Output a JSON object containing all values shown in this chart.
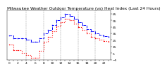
{
  "title": "Milwaukee Weather Outdoor Temperature (vs) Heat Index (Last 24 Hours)",
  "background_color": "#ffffff",
  "hours": [
    0,
    1,
    2,
    3,
    4,
    5,
    6,
    7,
    8,
    9,
    10,
    11,
    12,
    13,
    14,
    15,
    16,
    17,
    18,
    19,
    20,
    21,
    22,
    23
  ],
  "temp": [
    32,
    28,
    28,
    28,
    25,
    22,
    22,
    28,
    35,
    40,
    48,
    55,
    60,
    65,
    62,
    58,
    52,
    48,
    42,
    38,
    35,
    33,
    31,
    30
  ],
  "heat_index": [
    18,
    10,
    10,
    5,
    2,
    -2,
    -2,
    8,
    22,
    30,
    38,
    46,
    52,
    58,
    55,
    50,
    45,
    40,
    35,
    30,
    28,
    25,
    23,
    22
  ],
  "ylim_min": -5,
  "ylim_max": 70,
  "y_ticks": [
    -5,
    5,
    15,
    25,
    35,
    45,
    55,
    65
  ],
  "temp_color": "#0000ff",
  "heat_color": "#ff0000",
  "grid_color": "#888888",
  "title_fontsize": 4.2,
  "tick_fontsize": 3.2,
  "vgrid_positions": [
    4,
    8,
    12,
    16,
    20
  ]
}
